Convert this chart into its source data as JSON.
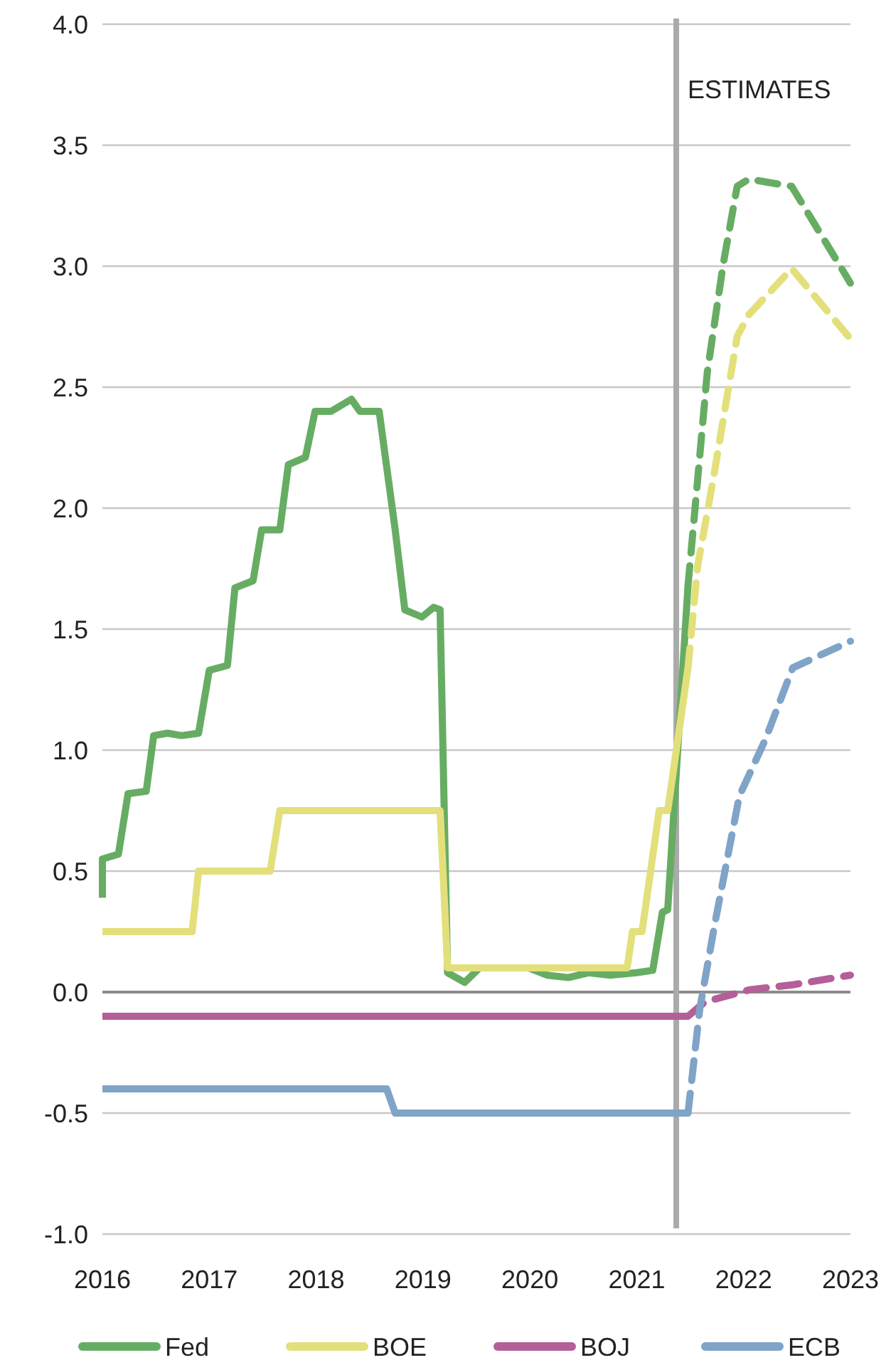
{
  "chart_data": {
    "type": "line",
    "xlim": [
      2016,
      2023
    ],
    "xticks": [
      2016,
      2017,
      2018,
      2019,
      2020,
      2021,
      2022,
      2023
    ],
    "ylim": [
      -1,
      4
    ],
    "yticks": [
      {
        "value": -1,
        "label": "-1.0"
      },
      {
        "value": -0.5,
        "label": "-0.5"
      },
      {
        "value": 0,
        "label": "0.0"
      },
      {
        "value": 0.5,
        "label": "0.5"
      },
      {
        "value": 1,
        "label": "1.0"
      },
      {
        "value": 1.5,
        "label": "1.5"
      },
      {
        "value": 2,
        "label": "2.0"
      },
      {
        "value": 2.5,
        "label": "2.5"
      },
      {
        "value": 3,
        "label": "3.0"
      },
      {
        "value": 3.5,
        "label": "3.5"
      },
      {
        "value": 4,
        "label": "4.0"
      }
    ],
    "grid": "y",
    "legend": "bottom",
    "marker": "none",
    "ref_lines": [
      {
        "axis": "x",
        "value": 2021.37,
        "label": "ESTIMATES",
        "color": "#aaaaaa"
      }
    ],
    "series": [
      {
        "name": "Fed",
        "color": "#66ad63",
        "line_style": "solid",
        "x": [
          2016.0,
          2016.0,
          2016.15,
          2016.24,
          2016.41,
          2016.48,
          2016.61,
          2016.74,
          2016.9,
          2017.0,
          2017.17,
          2017.24,
          2017.41,
          2017.49,
          2017.66,
          2017.74,
          2017.9,
          2017.99,
          2018.14,
          2018.33,
          2018.41,
          2018.59,
          2018.74,
          2018.83,
          2018.99,
          2019.1,
          2019.16,
          2019.23,
          2019.39,
          2019.53,
          2019.99,
          2020.16,
          2020.36,
          2020.55,
          2020.75,
          2021.0,
          2021.15,
          2021.24,
          2021.29,
          2021.48
        ],
        "values": [
          0.39,
          0.55,
          0.57,
          0.82,
          0.83,
          1.06,
          1.07,
          1.06,
          1.07,
          1.33,
          1.35,
          1.67,
          1.7,
          1.91,
          1.91,
          2.18,
          2.21,
          2.4,
          2.4,
          2.45,
          2.4,
          2.4,
          1.91,
          1.58,
          1.55,
          1.59,
          1.58,
          0.08,
          0.04,
          0.1,
          0.1,
          0.07,
          0.06,
          0.08,
          0.07,
          0.08,
          0.09,
          0.33,
          0.34,
          1.68
        ]
      },
      {
        "name": "BOE",
        "color": "#e3e07c",
        "line_style": "solid",
        "x": [
          2016.0,
          2016.84,
          2016.9,
          2017.57,
          2017.66,
          2019.16,
          2019.23,
          2020.91,
          2020.96,
          2021.05,
          2021.21,
          2021.29,
          2021.48
        ],
        "values": [
          0.25,
          0.25,
          0.5,
          0.5,
          0.75,
          0.75,
          0.1,
          0.1,
          0.25,
          0.25,
          0.75,
          0.75,
          1.34
        ]
      },
      {
        "name": "BOJ",
        "color": "#b45f98",
        "line_style": "solid",
        "x": [
          2016.0,
          2021.48
        ],
        "values": [
          -0.1,
          -0.1
        ]
      },
      {
        "name": "ECB",
        "color": "#80a3c8",
        "line_style": "solid",
        "x": [
          2016.0,
          2018.66,
          2018.74,
          2021.48
        ],
        "values": [
          -0.4,
          -0.4,
          -0.5,
          -0.5
        ]
      },
      {
        "color": "#66ad63",
        "line_style": "dashed",
        "x": [
          2021.48,
          2021.55,
          2021.66,
          2021.81,
          2021.94,
          2022.05,
          2022.45,
          2023.0
        ],
        "values": [
          1.68,
          2.02,
          2.56,
          3.01,
          3.33,
          3.36,
          3.33,
          2.93
        ]
      },
      {
        "color": "#e3e07c",
        "line_style": "dashed",
        "x": [
          2021.48,
          2021.57,
          2021.72,
          2021.94,
          2022.05,
          2022.45,
          2023.0
        ],
        "values": [
          1.34,
          1.76,
          2.13,
          2.71,
          2.8,
          2.99,
          2.7
        ]
      },
      {
        "color": "#b45f98",
        "line_style": "dashed",
        "x": [
          2021.48,
          2021.64,
          2022.06,
          2022.46,
          2023.0
        ],
        "values": [
          -0.1,
          -0.04,
          0.01,
          0.03,
          0.07
        ]
      },
      {
        "color": "#80a3c8",
        "line_style": "dashed",
        "x": [
          2021.48,
          2021.59,
          2021.73,
          2021.96,
          2022.2,
          2022.46,
          2023.0
        ],
        "values": [
          -0.5,
          -0.07,
          0.28,
          0.81,
          1.04,
          1.34,
          1.45
        ]
      }
    ]
  }
}
